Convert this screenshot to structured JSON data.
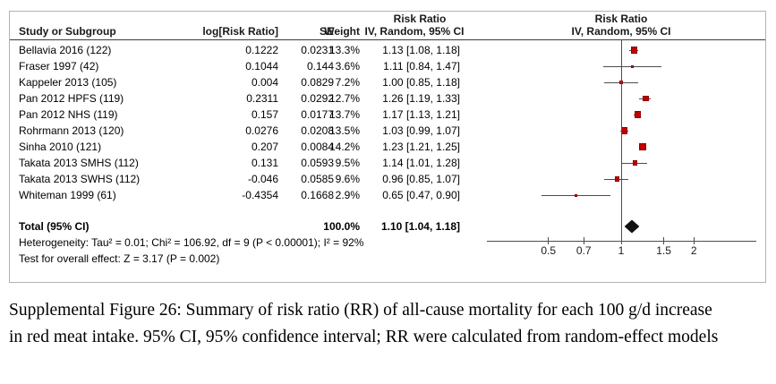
{
  "figure": {
    "headers": {
      "study": "Study or Subgroup",
      "log_rr": "log[Risk Ratio]",
      "se": "SE",
      "weight": "Weight",
      "ci_col_top": "Risk Ratio",
      "ci_col_bottom": "IV, Random, 95% CI",
      "plot_col_top": "Risk Ratio",
      "plot_col_bottom": "IV, Random, 95% CI"
    },
    "footer": {
      "heterogeneity": "Heterogeneity: Tau² = 0.01; Chi² = 106.92, df = 9 (P < 0.00001); I² = 92%",
      "overall_effect": "Test for overall effect: Z = 3.17 (P = 0.002)"
    },
    "colors": {
      "marker_red": "#c00000",
      "line_gray": "#4d4d4d",
      "diamond_black": "#111111",
      "border_gray": "#b3b3b3"
    }
  },
  "chart_data": {
    "type": "forest",
    "title": "Risk Ratio — IV, Random, 95% CI",
    "x_scale": "log10",
    "axis_ticks": [
      0.5,
      0.7,
      1,
      1.5,
      2
    ],
    "axis_range": [
      0.28,
      3.6
    ],
    "studies": [
      {
        "name": "Bellavia 2016 (122)",
        "log_rr": "0.1222",
        "se": "0.0231",
        "weight": "13.3%",
        "ci_text": "1.13 [1.08, 1.18]",
        "rr": 1.13,
        "lo": 1.08,
        "hi": 1.18,
        "weight_pct": 13.3
      },
      {
        "name": "Fraser 1997 (42)",
        "log_rr": "0.1044",
        "se": "0.144",
        "weight": "3.6%",
        "ci_text": "1.11 [0.84, 1.47]",
        "rr": 1.11,
        "lo": 0.84,
        "hi": 1.47,
        "weight_pct": 3.6
      },
      {
        "name": "Kappeler 2013 (105)",
        "log_rr": "0.004",
        "se": "0.0829",
        "weight": "7.2%",
        "ci_text": "1.00 [0.85, 1.18]",
        "rr": 1.0,
        "lo": 0.85,
        "hi": 1.18,
        "weight_pct": 7.2
      },
      {
        "name": "Pan 2012 HPFS (119)",
        "log_rr": "0.2311",
        "se": "0.0292",
        "weight": "12.7%",
        "ci_text": "1.26 [1.19, 1.33]",
        "rr": 1.26,
        "lo": 1.19,
        "hi": 1.33,
        "weight_pct": 12.7
      },
      {
        "name": "Pan 2012 NHS (119)",
        "log_rr": "0.157",
        "se": "0.0177",
        "weight": "13.7%",
        "ci_text": "1.17 [1.13, 1.21]",
        "rr": 1.17,
        "lo": 1.13,
        "hi": 1.21,
        "weight_pct": 13.7
      },
      {
        "name": "Rohrmann 2013 (120)",
        "log_rr": "0.0276",
        "se": "0.0208",
        "weight": "13.5%",
        "ci_text": "1.03 [0.99, 1.07]",
        "rr": 1.03,
        "lo": 0.99,
        "hi": 1.07,
        "weight_pct": 13.5
      },
      {
        "name": "Sinha 2010 (121)",
        "log_rr": "0.207",
        "se": "0.0084",
        "weight": "14.2%",
        "ci_text": "1.23 [1.21, 1.25]",
        "rr": 1.23,
        "lo": 1.21,
        "hi": 1.25,
        "weight_pct": 14.2
      },
      {
        "name": "Takata 2013 SMHS (112)",
        "log_rr": "0.131",
        "se": "0.0593",
        "weight": "9.5%",
        "ci_text": "1.14 [1.01, 1.28]",
        "rr": 1.14,
        "lo": 1.01,
        "hi": 1.28,
        "weight_pct": 9.5
      },
      {
        "name": "Takata 2013 SWHS (112)",
        "log_rr": "-0.046",
        "se": "0.0585",
        "weight": "9.6%",
        "ci_text": "0.96 [0.85, 1.07]",
        "rr": 0.96,
        "lo": 0.85,
        "hi": 1.07,
        "weight_pct": 9.6
      },
      {
        "name": "Whiteman 1999 (61)",
        "log_rr": "-0.4354",
        "se": "0.1668",
        "weight": "2.9%",
        "ci_text": "0.65 [0.47, 0.90]",
        "rr": 0.65,
        "lo": 0.47,
        "hi": 0.9,
        "weight_pct": 2.9
      }
    ],
    "total": {
      "label": "Total (95% CI)",
      "weight": "100.0%",
      "ci_text": "1.10 [1.04, 1.18]",
      "rr": 1.1,
      "lo": 1.04,
      "hi": 1.18
    }
  },
  "caption": {
    "text": "Supplemental Figure 26: Summary of risk ratio (RR) of all-cause mortality for each 100 g/d increase in red meat intake. 95% CI, 95% confidence interval; RR were calculated from random-effect models"
  }
}
